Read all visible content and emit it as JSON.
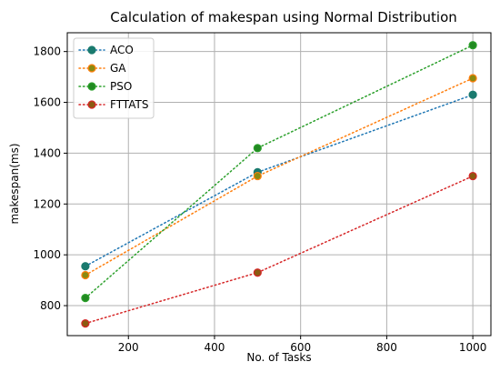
{
  "chart_data": {
    "type": "line",
    "title": "Calculation of makespan using Normal Distribution",
    "xlabel": "No. of Tasks",
    "ylabel": "makespan(ms)",
    "xlim": [
      58,
      1042
    ],
    "ylim": [
      682,
      1874
    ],
    "xticks": [
      200,
      400,
      600,
      800,
      1000
    ],
    "yticks": [
      800,
      1000,
      1200,
      1400,
      1600,
      1800
    ],
    "grid": true,
    "legend_position": "top-left",
    "x": [
      100,
      500,
      1000
    ],
    "series": [
      {
        "name": "ACO",
        "values": [
          955,
          1325,
          1630
        ],
        "line_color": "#1f77b4",
        "marker_color": "#1a7a6e",
        "marker_edge": "#1a7a6e"
      },
      {
        "name": "GA",
        "values": [
          920,
          1310,
          1695
        ],
        "line_color": "#ff7f0e",
        "marker_color": "#8a8a10",
        "marker_edge": "#ff7f0e"
      },
      {
        "name": "PSO",
        "values": [
          830,
          1420,
          1825
        ],
        "line_color": "#2ca02c",
        "marker_color": "#218a21",
        "marker_edge": "#2ca02c"
      },
      {
        "name": "FTTATS",
        "values": [
          730,
          930,
          1310
        ],
        "line_color": "#d62728",
        "marker_color": "#8a5a10",
        "marker_edge": "#d62728"
      }
    ]
  }
}
